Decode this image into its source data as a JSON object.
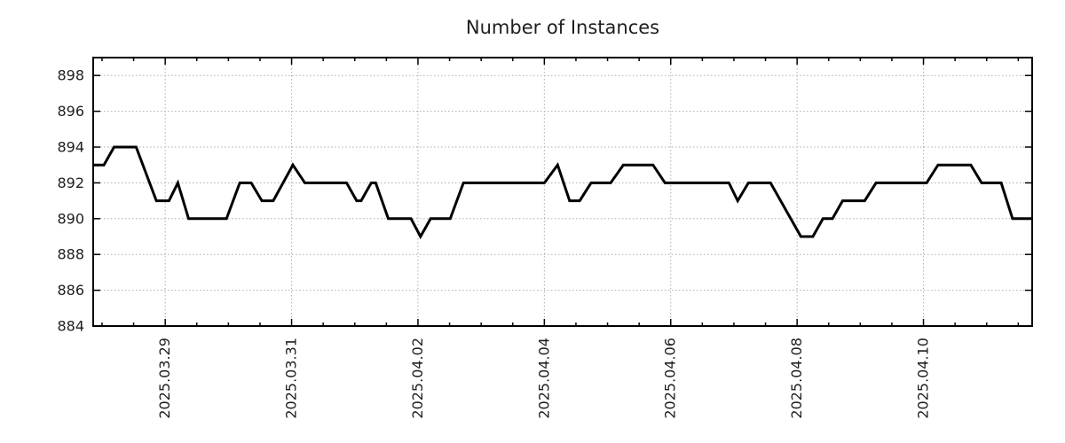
{
  "chart_data": {
    "type": "line",
    "title": "Number of Instances",
    "x_axis": {
      "tick_labels": [
        "2025.03.29",
        "2025.03.31",
        "2025.04.02",
        "2025.04.04",
        "2025.04.06",
        "2025.04.08",
        "2025.04.10"
      ],
      "tick_positions": [
        0,
        2,
        4,
        6,
        8,
        10,
        12
      ],
      "positions_unit": "days relative to 2025.03.29",
      "minor_tick_interval": 0.5,
      "range": [
        -1.14,
        13.72
      ]
    },
    "y_axis": {
      "ticks": [
        884,
        886,
        888,
        890,
        892,
        894,
        896,
        898
      ],
      "range": [
        884,
        899
      ]
    },
    "grid": true,
    "legend": false,
    "series": [
      {
        "name": "Number of Instances",
        "color": "#000000",
        "points": [
          [
            -1.14,
            893
          ],
          [
            -0.97,
            893
          ],
          [
            -0.81,
            894
          ],
          [
            -0.46,
            894
          ],
          [
            -0.14,
            891
          ],
          [
            0.06,
            891
          ],
          [
            0.2,
            892
          ],
          [
            0.37,
            890
          ],
          [
            0.97,
            890
          ],
          [
            1.18,
            892
          ],
          [
            1.36,
            892
          ],
          [
            1.53,
            891
          ],
          [
            1.71,
            891
          ],
          [
            2.02,
            893
          ],
          [
            2.21,
            892
          ],
          [
            2.87,
            892
          ],
          [
            3.03,
            891
          ],
          [
            3.1,
            891
          ],
          [
            3.26,
            892
          ],
          [
            3.33,
            892
          ],
          [
            3.53,
            890
          ],
          [
            3.89,
            890
          ],
          [
            4.04,
            889
          ],
          [
            4.2,
            890
          ],
          [
            4.51,
            890
          ],
          [
            4.72,
            892
          ],
          [
            6.0,
            892
          ],
          [
            6.21,
            893
          ],
          [
            6.4,
            891
          ],
          [
            6.56,
            891
          ],
          [
            6.74,
            892
          ],
          [
            7.05,
            892
          ],
          [
            7.25,
            893
          ],
          [
            7.72,
            893
          ],
          [
            7.91,
            892
          ],
          [
            8.92,
            892
          ],
          [
            9.06,
            891
          ],
          [
            9.23,
            892
          ],
          [
            9.58,
            892
          ],
          [
            10.06,
            889
          ],
          [
            10.25,
            889
          ],
          [
            10.41,
            890
          ],
          [
            10.56,
            890
          ],
          [
            10.72,
            891
          ],
          [
            11.07,
            891
          ],
          [
            11.25,
            892
          ],
          [
            12.05,
            892
          ],
          [
            12.23,
            893
          ],
          [
            12.75,
            893
          ],
          [
            12.92,
            892
          ],
          [
            13.23,
            892
          ],
          [
            13.41,
            890
          ],
          [
            13.72,
            890
          ]
        ]
      }
    ],
    "colors": {
      "line": "#000000",
      "grid": "#adadad",
      "axis": "#000000",
      "background": "#ffffff"
    }
  }
}
